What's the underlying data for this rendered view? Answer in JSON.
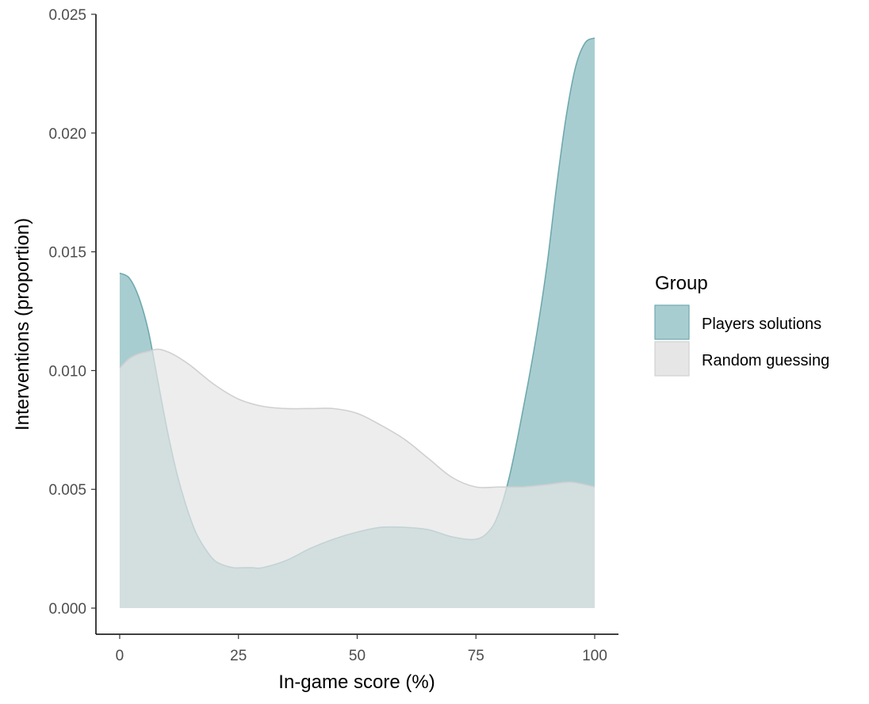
{
  "chart_data": {
    "type": "area",
    "title": "",
    "xlabel": "In-game score (%)",
    "ylabel": "Interventions (proportion)",
    "xlim": [
      -5,
      105
    ],
    "ylim": [
      -0.0011,
      0.025
    ],
    "xticks": [
      "0",
      "25",
      "50",
      "75",
      "100"
    ],
    "xtick_values": [
      0,
      25,
      50,
      75,
      100
    ],
    "yticks": [
      "0.000",
      "0.005",
      "0.010",
      "0.015",
      "0.020",
      "0.025"
    ],
    "ytick_values": [
      0,
      0.005,
      0.01,
      0.015,
      0.02,
      0.025
    ],
    "grid": false,
    "legend": {
      "title": "Group",
      "position": "right"
    },
    "series": [
      {
        "name": "Players solutions",
        "fill": "#a8cdd0",
        "stroke": "#6fa9ae",
        "x": [
          0,
          2,
          4,
          6,
          8,
          10,
          12,
          14,
          16,
          18,
          20,
          22,
          24,
          26,
          28,
          30,
          35,
          40,
          45,
          50,
          55,
          60,
          65,
          70,
          75,
          78,
          80,
          82,
          84,
          86,
          88,
          90,
          92,
          94,
          96,
          98,
          100
        ],
        "y": [
          0.0141,
          0.0139,
          0.0131,
          0.0117,
          0.0096,
          0.0075,
          0.0057,
          0.0043,
          0.0032,
          0.0025,
          0.002,
          0.0018,
          0.0017,
          0.0017,
          0.0017,
          0.0017,
          0.002,
          0.0025,
          0.0029,
          0.0032,
          0.0034,
          0.0034,
          0.0033,
          0.003,
          0.0029,
          0.0033,
          0.0041,
          0.0055,
          0.0074,
          0.0095,
          0.0118,
          0.0145,
          0.0178,
          0.0207,
          0.0228,
          0.0238,
          0.024
        ]
      },
      {
        "name": "Random guessing",
        "fill": "#e6e6e6",
        "stroke": "#d0d0d0",
        "x": [
          0,
          2,
          4,
          6,
          8,
          10,
          12,
          15,
          20,
          25,
          30,
          35,
          40,
          45,
          50,
          55,
          60,
          65,
          70,
          75,
          80,
          85,
          90,
          95,
          100
        ],
        "y": [
          0.0101,
          0.0105,
          0.0107,
          0.0108,
          0.0109,
          0.0108,
          0.0106,
          0.0102,
          0.0094,
          0.0088,
          0.0085,
          0.0084,
          0.0084,
          0.0084,
          0.0082,
          0.0077,
          0.0071,
          0.0063,
          0.0055,
          0.0051,
          0.0051,
          0.0051,
          0.0052,
          0.0053,
          0.0051
        ]
      }
    ]
  }
}
